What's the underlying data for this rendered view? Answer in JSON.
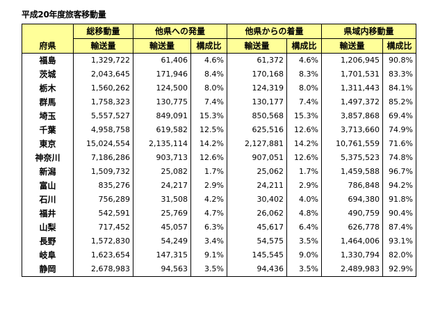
{
  "title": "平成20年度旅客移動量",
  "header": {
    "prefecture": "府県",
    "groups": [
      "総移動量",
      "他県への発量",
      "他県からの着量",
      "県域内移動量"
    ],
    "subcols": [
      "輸送量",
      "輸送量",
      "構成比",
      "輸送量",
      "構成比",
      "輸送量",
      "構成比"
    ]
  },
  "rows": [
    [
      "福島",
      "1,329,722",
      "61,406",
      "4.6%",
      "61,372",
      "4.6%",
      "1,206,945",
      "90.8%"
    ],
    [
      "茨城",
      "2,043,645",
      "171,946",
      "8.4%",
      "170,168",
      "8.3%",
      "1,701,531",
      "83.3%"
    ],
    [
      "栃木",
      "1,560,262",
      "124,500",
      "8.0%",
      "124,319",
      "8.0%",
      "1,311,443",
      "84.1%"
    ],
    [
      "群馬",
      "1,758,323",
      "130,775",
      "7.4%",
      "130,177",
      "7.4%",
      "1,497,372",
      "85.2%"
    ],
    [
      "埼玉",
      "5,557,527",
      "849,091",
      "15.3%",
      "850,568",
      "15.3%",
      "3,857,868",
      "69.4%"
    ],
    [
      "千葉",
      "4,958,758",
      "619,582",
      "12.5%",
      "625,516",
      "12.6%",
      "3,713,660",
      "74.9%"
    ],
    [
      "東京",
      "15,024,554",
      "2,135,114",
      "14.2%",
      "2,127,881",
      "14.2%",
      "10,761,559",
      "71.6%"
    ],
    [
      "神奈川",
      "7,186,286",
      "903,713",
      "12.6%",
      "907,051",
      "12.6%",
      "5,375,523",
      "74.8%"
    ],
    [
      "新潟",
      "1,509,732",
      "25,082",
      "1.7%",
      "25,062",
      "1.7%",
      "1,459,588",
      "96.7%"
    ],
    [
      "富山",
      "835,276",
      "24,217",
      "2.9%",
      "24,211",
      "2.9%",
      "786,848",
      "94.2%"
    ],
    [
      "石川",
      "756,289",
      "31,508",
      "4.2%",
      "30,402",
      "4.0%",
      "694,380",
      "91.8%"
    ],
    [
      "福井",
      "542,591",
      "25,769",
      "4.7%",
      "26,062",
      "4.8%",
      "490,759",
      "90.4%"
    ],
    [
      "山梨",
      "717,452",
      "45,057",
      "6.3%",
      "45,617",
      "6.4%",
      "626,778",
      "87.4%"
    ],
    [
      "長野",
      "1,572,830",
      "54,249",
      "3.4%",
      "54,575",
      "3.5%",
      "1,464,006",
      "93.1%"
    ],
    [
      "岐阜",
      "1,623,654",
      "147,315",
      "9.1%",
      "145,545",
      "9.0%",
      "1,330,794",
      "82.0%"
    ],
    [
      "静岡",
      "2,678,983",
      "94,563",
      "3.5%",
      "94,436",
      "3.5%",
      "2,489,983",
      "92.9%"
    ]
  ]
}
